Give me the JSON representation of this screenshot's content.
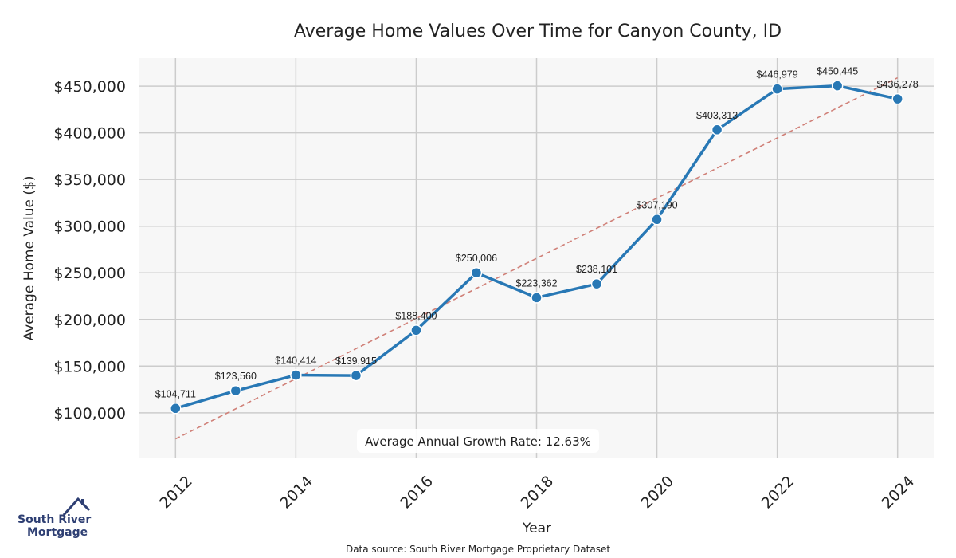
{
  "chart_data": {
    "type": "line",
    "title": "Average Home Values Over Time for Canyon County, ID",
    "xlabel": "Year",
    "ylabel": "Average Home Value ($)",
    "x": [
      2012,
      2013,
      2014,
      2015,
      2016,
      2017,
      2018,
      2019,
      2020,
      2021,
      2022,
      2023,
      2024
    ],
    "series": [
      {
        "values": [
          104711,
          123560,
          140414,
          139915,
          188400,
          250006,
          223362,
          238101,
          307190,
          403313,
          446979,
          450445,
          436278
        ],
        "labels": [
          "$104,711",
          "$123,560",
          "$140,414",
          "$139,915",
          "$188,400",
          "$250,006",
          "$223,362",
          "$238,101",
          "$307,190",
          "$403,313",
          "$446,979",
          "$450,445",
          "$436,278"
        ],
        "color": "#2878b5"
      }
    ],
    "trendline": {
      "start": [
        2012,
        72000
      ],
      "end": [
        2024,
        459000
      ],
      "color": "#d08078",
      "style": "dashed"
    },
    "xticks": [
      2012,
      2014,
      2016,
      2018,
      2020,
      2022,
      2024
    ],
    "yticks": [
      100000,
      150000,
      200000,
      250000,
      300000,
      350000,
      400000,
      450000
    ],
    "ytick_labels": [
      "$100,000",
      "$150,000",
      "$200,000",
      "$250,000",
      "$300,000",
      "$350,000",
      "$400,000",
      "$450,000"
    ],
    "xlim": [
      2011.4,
      2024.6
    ],
    "ylim": [
      52000,
      480000
    ],
    "grid": true,
    "annotation": "Average Annual Growth Rate: 12.63%"
  },
  "logo": {
    "line1": "South River",
    "line2": "Mortgage",
    "color": "#2e3f73"
  },
  "source": "Data source: South River Mortgage Proprietary Dataset"
}
